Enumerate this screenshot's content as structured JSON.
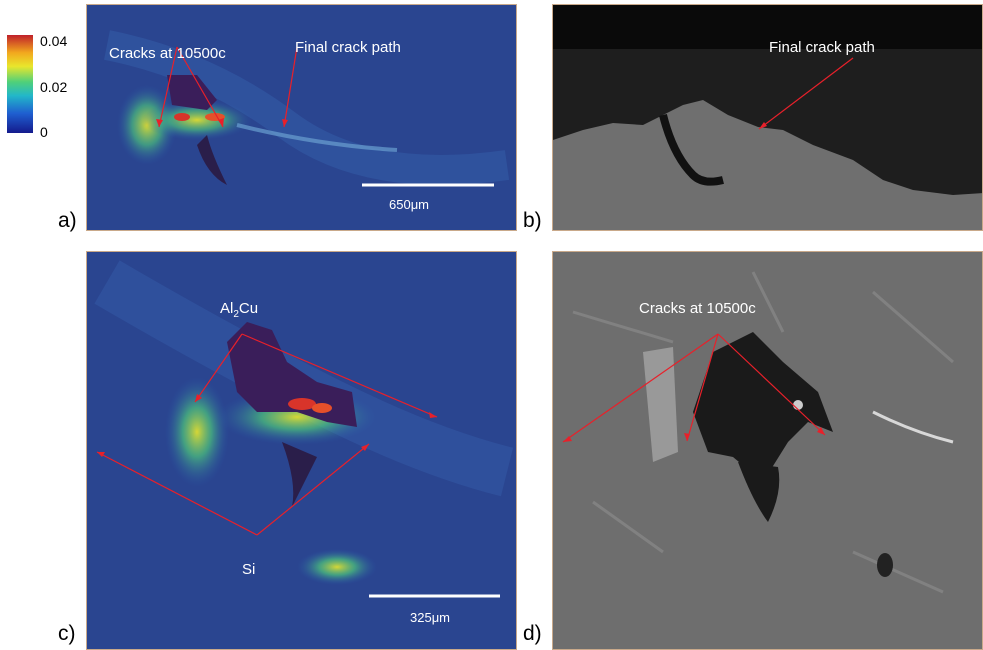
{
  "colorbar": {
    "ticks": [
      "0.04",
      "0.02",
      "0"
    ],
    "colors": [
      "#c0202a",
      "#f2a81e",
      "#e9e62c",
      "#4fd07a",
      "#22b7c9",
      "#1f5fd0",
      "#141a8c"
    ]
  },
  "panels": {
    "a": {
      "label": "a)",
      "annotations": {
        "cracks": "Cracks at 10500c",
        "path": "Final crack path"
      },
      "scale": "650μm"
    },
    "b": {
      "label": "b)",
      "annotations": {
        "path": "Final crack path"
      }
    },
    "c": {
      "label": "c)",
      "annotations": {
        "al2cu_main": "Al",
        "al2cu_sub": "2",
        "al2cu_rest": "Cu",
        "si": "Si"
      },
      "scale": "325μm"
    },
    "d": {
      "label": "d)",
      "annotations": {
        "cracks": "Cracks at 10500c"
      }
    }
  },
  "colors": {
    "arrow": "#e8202a",
    "strain_bg": "#283d86",
    "sem_bg": "#6f6f6f"
  }
}
